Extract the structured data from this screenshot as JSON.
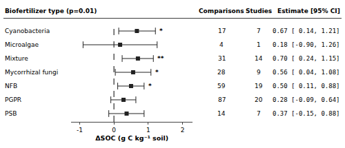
{
  "chart_data": {
    "type": "forest",
    "title": "Biofertilizer type (p=0.01)",
    "column_headers": [
      "Comparisons",
      "Studies",
      "Estimate [95% CI]"
    ],
    "xlabel": "ΔSOC (g C kg⁻¹ soil)",
    "categories": [
      "Cyanobacteria",
      "Microalgae",
      "Mixture",
      "Mycorrhizal fungi",
      "NFB",
      "PGPR",
      "PSB"
    ],
    "values": [
      0.67,
      0.18,
      0.7,
      0.56,
      0.5,
      0.28,
      0.37
    ],
    "ci_low": [
      0.14,
      -0.9,
      0.24,
      0.04,
      0.11,
      -0.09,
      -0.15
    ],
    "ci_high": [
      1.21,
      1.26,
      1.15,
      1.08,
      0.88,
      0.64,
      0.88
    ],
    "comparisons": [
      17,
      4,
      31,
      28,
      59,
      87,
      14
    ],
    "studies": [
      7,
      1,
      14,
      9,
      19,
      20,
      7
    ],
    "value_labels": [
      "0.67 [ 0.14, 1.21]",
      "0.18 [-0.90, 1.26]",
      "0.70 [ 0.24, 1.15]",
      "0.56 [ 0.04, 1.08]",
      "0.50 [ 0.11, 0.88]",
      "0.28 [-0.09, 0.64]",
      "0.37 [-0.15, 0.88]"
    ],
    "significance": [
      "*",
      null,
      "**",
      "*",
      "*",
      null,
      null
    ],
    "reference_line": 0,
    "xlim": [
      -1.25,
      2.3
    ],
    "xticks": [
      -1,
      0,
      1,
      2
    ],
    "grid": false,
    "color": "#222222",
    "marker": "square"
  }
}
